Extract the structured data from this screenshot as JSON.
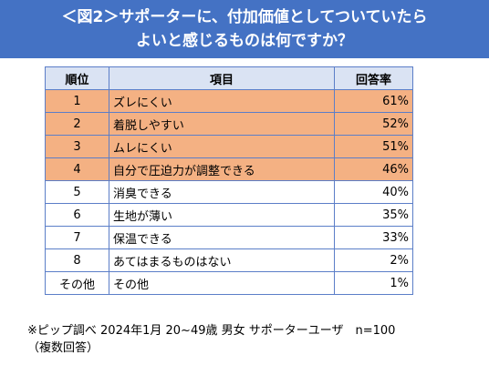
{
  "title": {
    "line1": "＜図2＞サポーターに、付加価値としてついていたら",
    "line2": "よいと感じるものは何ですか？"
  },
  "colors": {
    "title_bg": "#4472c4",
    "header_bg": "#dae3f3",
    "highlight_bg": "#f4b183",
    "border": "#5b7ec8"
  },
  "chart_data": {
    "type": "table",
    "columns": [
      "順位",
      "項目",
      "回答率"
    ],
    "rows": [
      {
        "rank": "1",
        "item": "ズレにくい",
        "rate": "61%",
        "highlight": true
      },
      {
        "rank": "2",
        "item": "着脱しやすい",
        "rate": "52%",
        "highlight": true
      },
      {
        "rank": "3",
        "item": "ムレにくい",
        "rate": "51%",
        "highlight": true
      },
      {
        "rank": "4",
        "item": "自分で圧迫力が調整できる",
        "rate": "46%",
        "highlight": true
      },
      {
        "rank": "5",
        "item": "消臭できる",
        "rate": "40%",
        "highlight": false
      },
      {
        "rank": "6",
        "item": "生地が薄い",
        "rate": "35%",
        "highlight": false
      },
      {
        "rank": "7",
        "item": "保温できる",
        "rate": "33%",
        "highlight": false
      },
      {
        "rank": "8",
        "item": "あてはまるものはない",
        "rate": "2%",
        "highlight": false
      },
      {
        "rank": "その他",
        "item": "その他",
        "rate": "1%",
        "highlight": false
      }
    ]
  },
  "note": {
    "line1": "※ピップ調べ 2024年1月 20~49歳 男女 サポーターユーザ　n=100",
    "line2": "（複数回答）"
  }
}
